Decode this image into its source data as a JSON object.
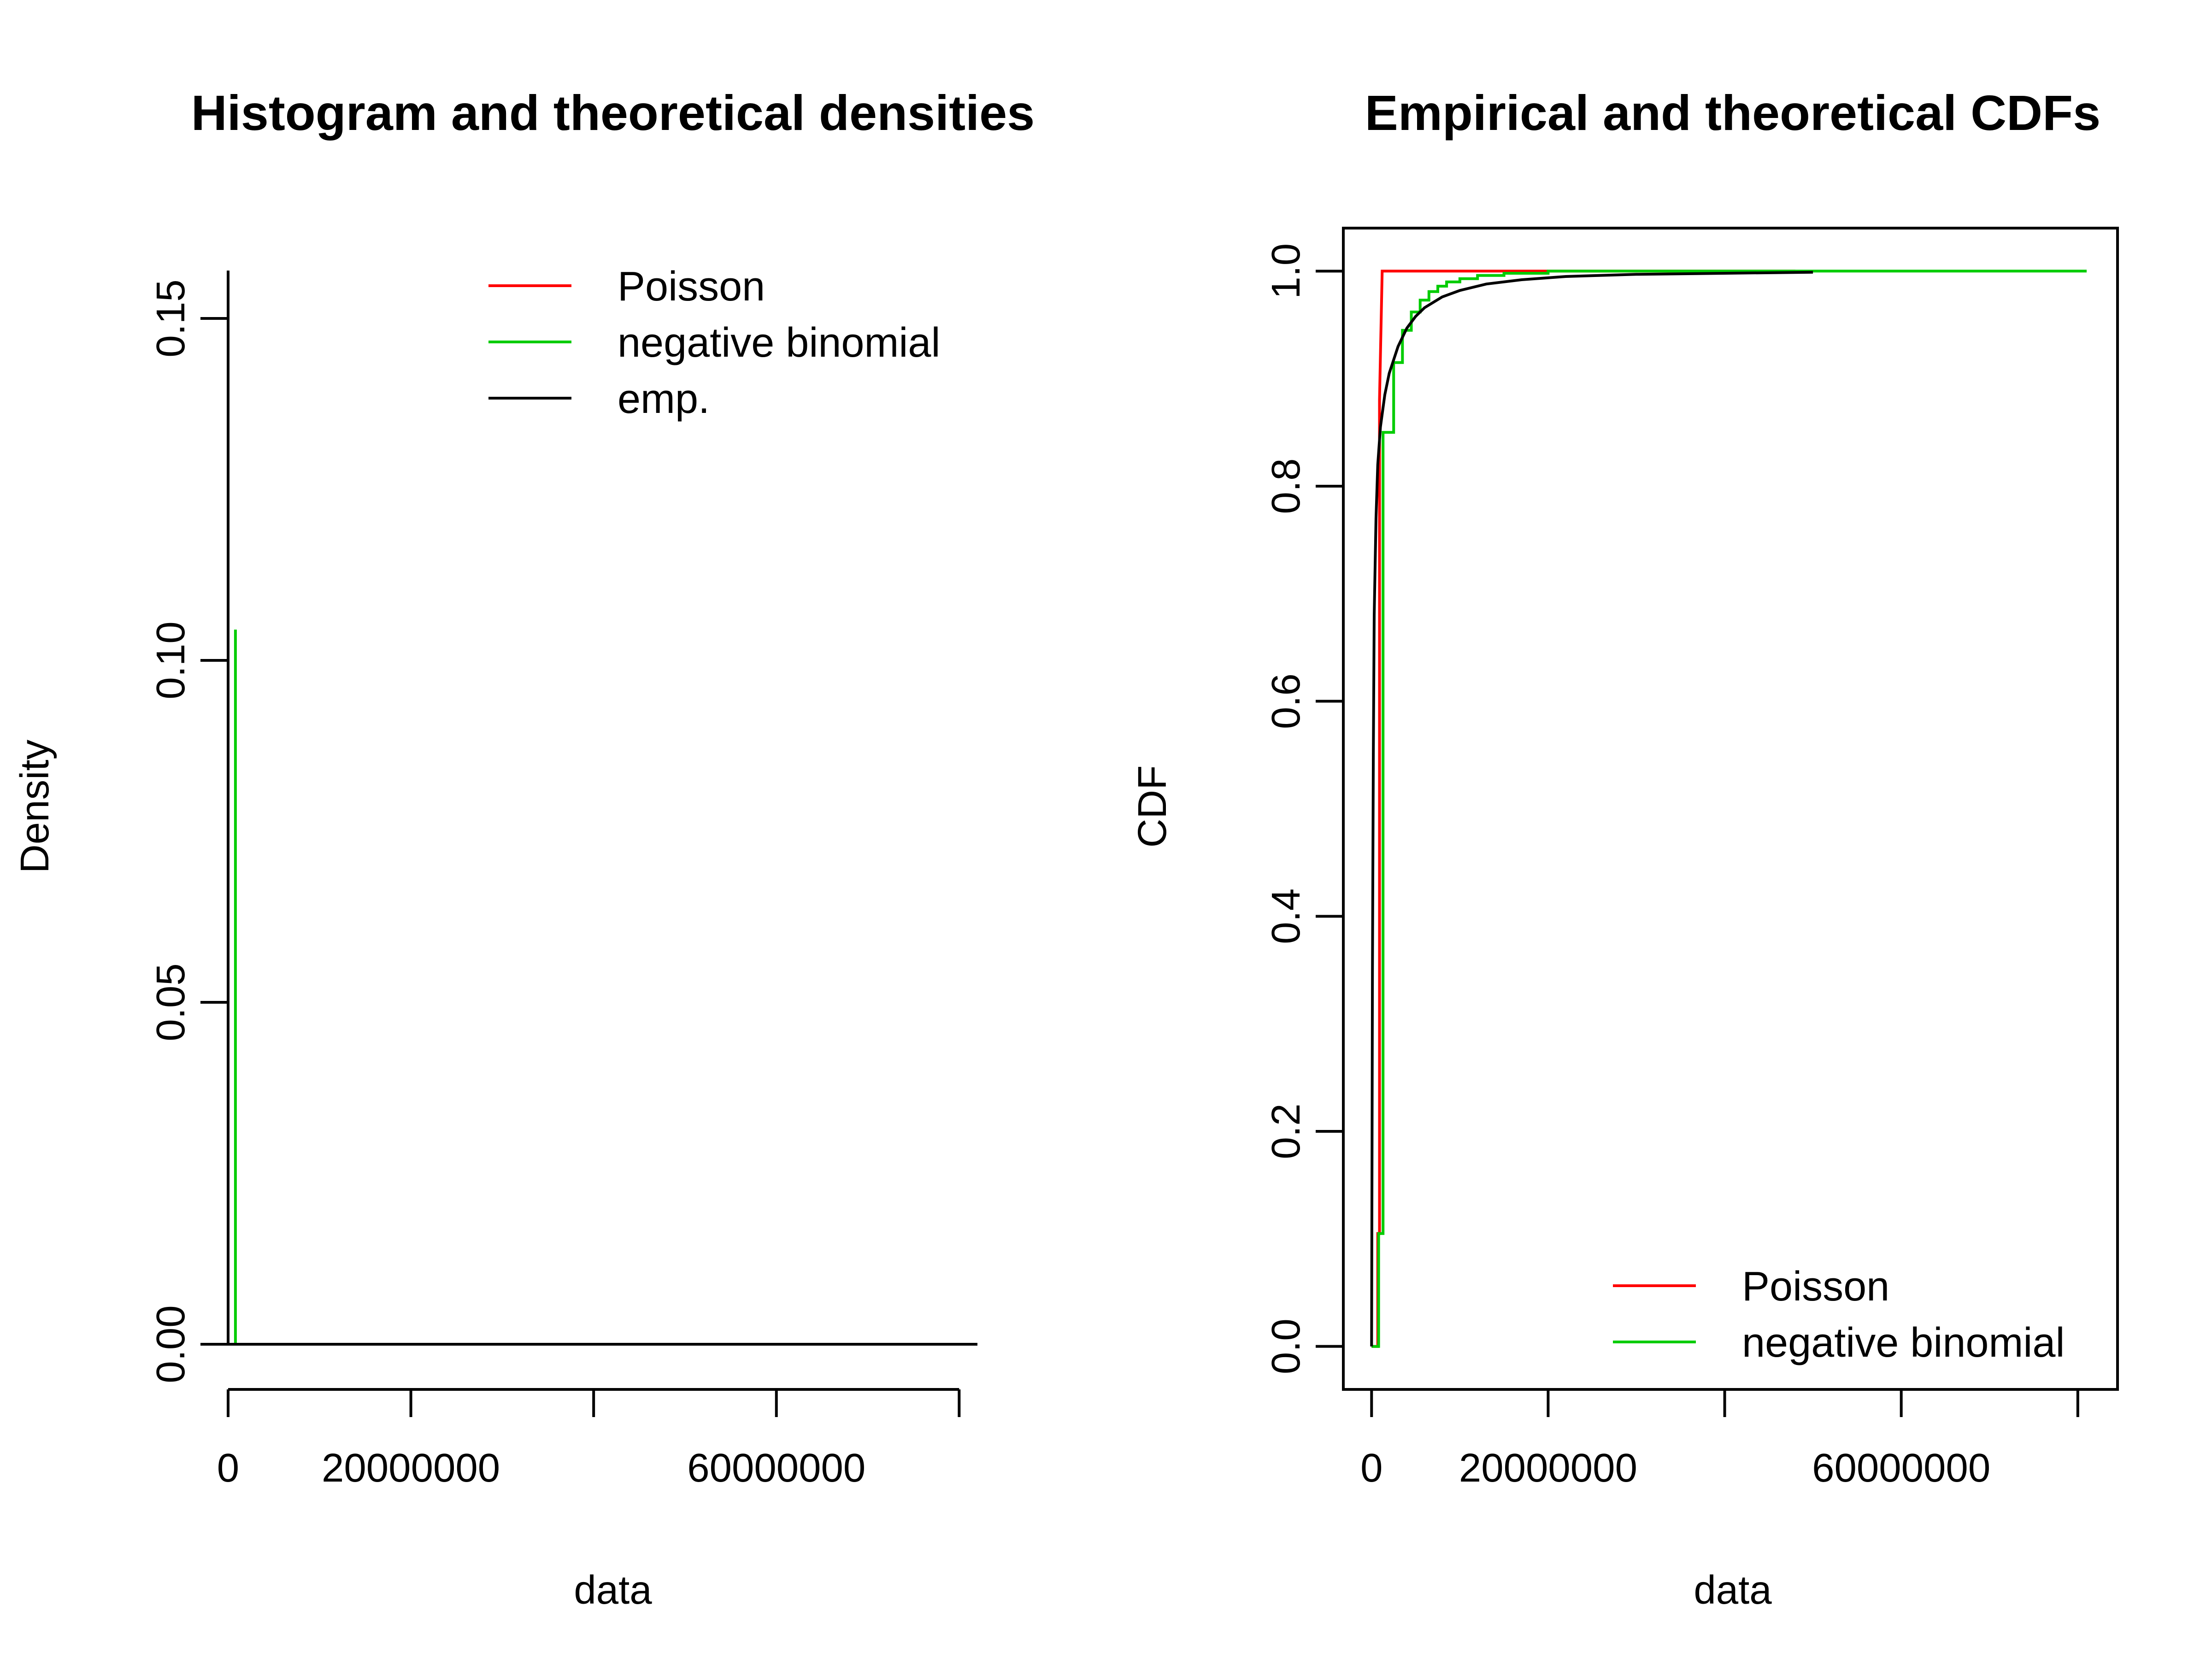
{
  "chart_data": [
    {
      "type": "bar",
      "title": "Histogram and theoretical densities",
      "xlabel": "data",
      "ylabel": "Density",
      "xlim": [
        0,
        82000000
      ],
      "ylim": [
        0,
        0.15
      ],
      "x_ticks": [
        0,
        20000000,
        40000000,
        60000000,
        80000000
      ],
      "x_tick_labels": [
        "0",
        "20000000",
        "",
        "60000000",
        ""
      ],
      "y_ticks": [
        0,
        0.05,
        0.1,
        0.15
      ],
      "y_tick_labels": [
        "0.00",
        "0.05",
        "0.10",
        "0.15"
      ],
      "legend": {
        "position": "top-right"
      },
      "series": [
        {
          "name": "Poisson",
          "color": "#ff0000",
          "x": [
            0,
            82000000
          ],
          "y": [
            0,
            0
          ]
        },
        {
          "name": "negative binomial",
          "color": "#00cc00",
          "x": [
            800000,
            800000
          ],
          "y": [
            0,
            0.1045
          ]
        },
        {
          "name": "emp.",
          "color": "#000000",
          "x": [
            0,
            0,
            0,
            82000000
          ],
          "y": [
            0,
            0.157,
            0,
            0
          ]
        }
      ]
    },
    {
      "type": "line",
      "title": "Empirical and theoretical CDFs",
      "xlabel": "data",
      "ylabel": "CDF",
      "xlim": [
        -3200000,
        84500000
      ],
      "ylim": [
        -0.04,
        1.04
      ],
      "x_ticks": [
        0,
        20000000,
        40000000,
        60000000,
        80000000
      ],
      "x_tick_labels": [
        "0",
        "20000000",
        "",
        "60000000",
        ""
      ],
      "y_ticks": [
        0,
        0.2,
        0.4,
        0.6,
        0.8,
        1.0
      ],
      "y_tick_labels": [
        "0.0",
        "0.2",
        "0.4",
        "0.6",
        "0.8",
        "1.0"
      ],
      "legend": {
        "position": "bottom-right"
      },
      "series": [
        {
          "name": "Poisson",
          "color": "#ff0000",
          "x": [
            0,
            700000,
            700000,
            900000,
            900000,
            1200000,
            48000000
          ],
          "y": [
            0,
            0,
            0.105,
            0.105,
            0.88,
            1.0,
            1.0
          ]
        },
        {
          "name": "negative binomial",
          "color": "#00cc00",
          "x": [
            0,
            800000,
            800000,
            1300000,
            1300000,
            2500000,
            2500000,
            3500000,
            3500000,
            4500000,
            4500000,
            5500000,
            5500000,
            6500000,
            6500000,
            7500000,
            7500000,
            8500000,
            8500000,
            10000000,
            10000000,
            12000000,
            12000000,
            15000000,
            15000000,
            20000000,
            20000000,
            81000000
          ],
          "y": [
            0,
            0,
            0.105,
            0.105,
            0.85,
            0.85,
            0.915,
            0.915,
            0.945,
            0.945,
            0.962,
            0.962,
            0.973,
            0.973,
            0.981,
            0.981,
            0.986,
            0.986,
            0.99,
            0.99,
            0.993,
            0.993,
            0.996,
            0.996,
            0.998,
            0.998,
            1.0,
            1.0
          ]
        },
        {
          "name": "emp.",
          "color": "#000000",
          "x": [
            0,
            100000,
            200000,
            300000,
            500000,
            700000,
            1000000,
            1500000,
            2000000,
            3000000,
            4000000,
            5000000,
            6000000,
            8000000,
            10000000,
            13000000,
            17000000,
            22000000,
            30000000,
            40000000,
            50000000
          ],
          "y": [
            0,
            0.35,
            0.55,
            0.68,
            0.77,
            0.82,
            0.855,
            0.885,
            0.905,
            0.93,
            0.947,
            0.958,
            0.966,
            0.976,
            0.982,
            0.988,
            0.992,
            0.995,
            0.997,
            0.998,
            0.999
          ]
        }
      ]
    }
  ]
}
